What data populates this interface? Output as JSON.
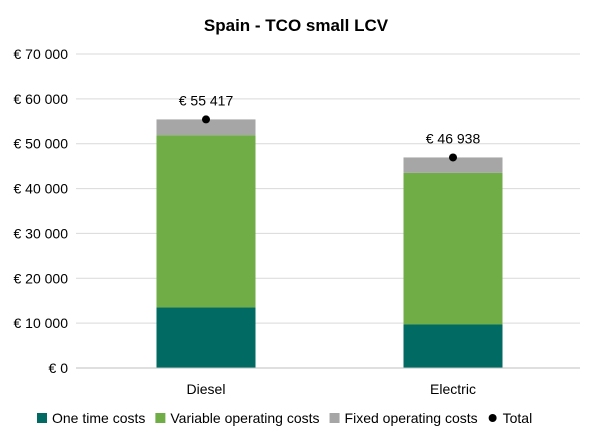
{
  "chart_data": {
    "type": "bar",
    "stacked": true,
    "title": "Spain - TCO small LCV",
    "categories": [
      "Diesel",
      "Electric"
    ],
    "series": [
      {
        "name": "One time costs",
        "color": "#006a63",
        "values": [
          13500,
          9700
        ]
      },
      {
        "name": "Variable operating costs",
        "color": "#70ad47",
        "values": [
          38400,
          33800
        ]
      },
      {
        "name": "Fixed operating costs",
        "color": "#a6a6a6",
        "values": [
          3517,
          3438
        ]
      }
    ],
    "total": {
      "name": "Total",
      "color": "#000000",
      "values": [
        55417,
        46938
      ],
      "labels": [
        "€ 55 417",
        "€ 46 938"
      ]
    },
    "ylim": [
      0,
      70000
    ],
    "yticks": [
      0,
      10000,
      20000,
      30000,
      40000,
      50000,
      60000,
      70000
    ],
    "ytick_labels": [
      "€ 0",
      "€ 10 000",
      "€ 20 000",
      "€ 30 000",
      "€ 40 000",
      "€ 50 000",
      "€ 60 000",
      "€ 70 000"
    ],
    "grid": true,
    "legend_position": "bottom"
  }
}
